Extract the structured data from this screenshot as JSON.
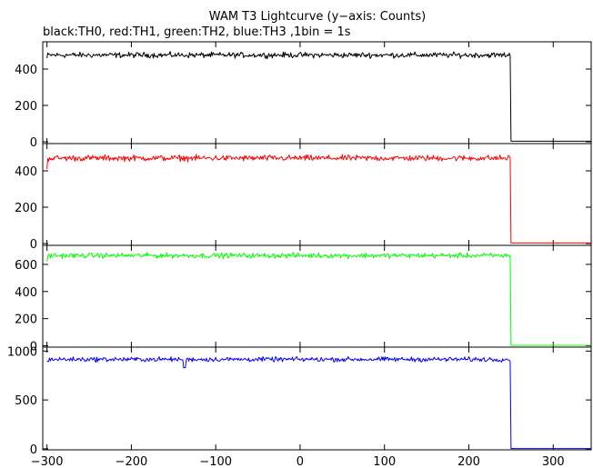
{
  "title": "WAM T3 Lightcurve (y−axis: Counts)",
  "subtitle": "black:TH0, red:TH1, green:TH2, blue:TH3 ,1bin = 1s",
  "chart_data": {
    "type": "line",
    "title": "WAM T3 Lightcurve (y−axis: Counts)",
    "subtitle": "black:TH0, red:TH1, green:TH2, blue:TH3 ,1bin = 1s",
    "xlabel": "",
    "xlim": [
      -305,
      345
    ],
    "x_ticks": [
      -300,
      -200,
      -100,
      0,
      100,
      200,
      300
    ],
    "x_tick_labels": [
      "−300",
      "−200",
      "−100",
      "0",
      "100",
      "200",
      "300"
    ],
    "grid": false,
    "panels": [
      {
        "name": "TH0",
        "color": "#000000",
        "ylim": [
          -10,
          550
        ],
        "y_ticks": [
          0,
          200,
          400
        ],
        "y_tick_labels": [
          "0",
          "200",
          "400"
        ],
        "x_start": -300,
        "x_drop": 250,
        "x_end": 345,
        "mean_before": 477,
        "noise_amplitude": 22,
        "start_value": 460,
        "level_after": 3
      },
      {
        "name": "TH1",
        "color": "#ff0000",
        "ylim": [
          -10,
          550
        ],
        "y_ticks": [
          0,
          200,
          400
        ],
        "y_tick_labels": [
          "0",
          "200",
          "400"
        ],
        "x_start": -300,
        "x_drop": 250,
        "x_end": 345,
        "mean_before": 470,
        "noise_amplitude": 24,
        "start_value": 410,
        "level_after": 3
      },
      {
        "name": "TH2",
        "color": "#00ff00",
        "ylim": [
          -10,
          740
        ],
        "y_ticks": [
          0,
          200,
          400,
          600
        ],
        "y_tick_labels": [
          "0",
          "200",
          "400",
          "600"
        ],
        "x_start": -300,
        "x_drop": 250,
        "x_end": 345,
        "mean_before": 665,
        "noise_amplitude": 28,
        "start_value": 620,
        "level_after": 3
      },
      {
        "name": "TH3",
        "color": "#0000ff",
        "ylim": [
          -10,
          1040
        ],
        "y_ticks": [
          0,
          500,
          1000
        ],
        "y_tick_labels": [
          "0",
          "500",
          "1000"
        ],
        "x_start": -300,
        "x_drop": 250,
        "x_end": 345,
        "mean_before": 915,
        "noise_amplitude": 35,
        "start_value": 890,
        "level_after": 3,
        "dips": [
          {
            "x": -137,
            "value": 830
          }
        ]
      }
    ]
  }
}
